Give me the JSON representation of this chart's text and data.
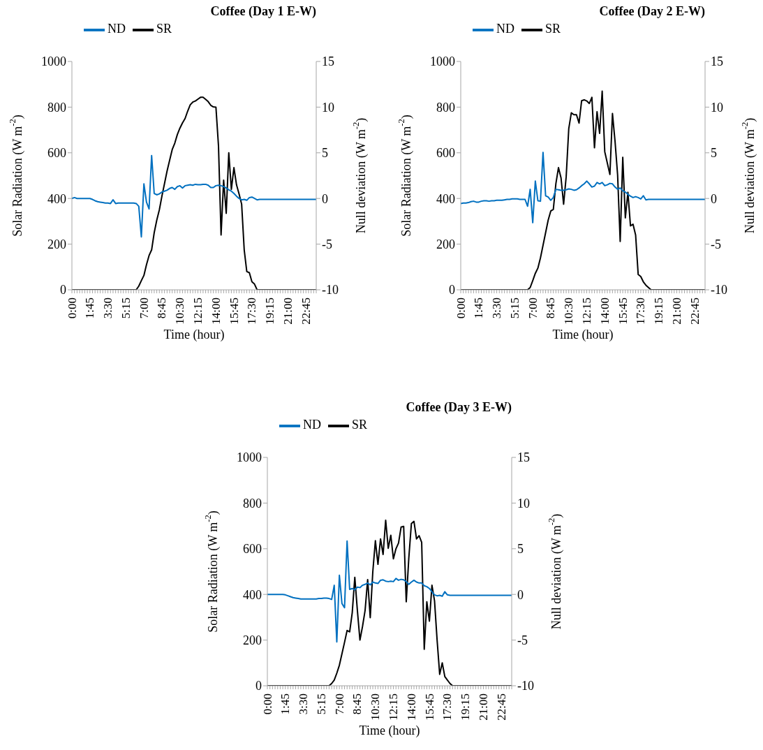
{
  "chart_data": [
    {
      "type": "line",
      "title": "Coffee (Day 1 E-W)",
      "xlabel": "Time (hour)",
      "ylabel": "Solar Radiation (W m$^{-2}$)",
      "y2label": "Null deviation (W m$^{-2}$)",
      "legend": "top left",
      "categories": [
        "0:00",
        null,
        null,
        null,
        null,
        null,
        null,
        "1:45",
        null,
        null,
        null,
        null,
        null,
        null,
        "3:30",
        null,
        null,
        null,
        null,
        null,
        null,
        "5:15",
        null,
        null,
        null,
        null,
        null,
        null,
        "7:00",
        null,
        null,
        null,
        null,
        null,
        null,
        "8:45",
        null,
        null,
        null,
        null,
        null,
        null,
        "10:30",
        null,
        null,
        null,
        null,
        null,
        null,
        "12:15",
        null,
        null,
        null,
        null,
        null,
        null,
        "14:00",
        null,
        null,
        null,
        null,
        null,
        null,
        "15:45",
        null,
        null,
        null,
        null,
        null,
        null,
        "17:30",
        null,
        null,
        null,
        null,
        null,
        null,
        "19:15",
        null,
        null,
        null,
        null,
        null,
        null,
        "21:00",
        null,
        null,
        null,
        null,
        null,
        null,
        "22:45",
        null,
        null,
        null,
        null
      ],
      "ylim": [
        0,
        1000
      ],
      "yticks": [
        0,
        200,
        400,
        600,
        800,
        1000
      ],
      "y2lim": [
        -10,
        15
      ],
      "y2ticks": [
        -10,
        -5,
        0,
        5,
        10,
        15
      ],
      "series": [
        {
          "name": "SR",
          "color": "#000000",
          "values": [
            0,
            0,
            0,
            0,
            0,
            0,
            0,
            0,
            0,
            0,
            0,
            0,
            0,
            0,
            0,
            0,
            0,
            0,
            0,
            0,
            0,
            0,
            0,
            0,
            0,
            0,
            16,
            40,
            63,
            110,
            150,
            175,
            250,
            305,
            350,
            410,
            465,
            520,
            567,
            614,
            642,
            680,
            708,
            731,
            750,
            782,
            810,
            822,
            827,
            835,
            843,
            843,
            834,
            824,
            808,
            801,
            800,
            630,
            240,
            480,
            335,
            600,
            440,
            535,
            460,
            420,
            375,
            175,
            80,
            75,
            35,
            25,
            0,
            0,
            0,
            0,
            0,
            0,
            0,
            0,
            0,
            0,
            0,
            0,
            0,
            0,
            0,
            0,
            0,
            0,
            0,
            0,
            0,
            0,
            0,
            0
          ]
        },
        {
          "name": "ND",
          "color": "#0070c0",
          "axis": "y2",
          "values": [
            0,
            0.1,
            0,
            0,
            0,
            0,
            0,
            0,
            -0.1,
            -0.25,
            -0.35,
            -0.4,
            -0.45,
            -0.5,
            -0.5,
            -0.55,
            -0.15,
            -0.55,
            -0.5,
            -0.5,
            -0.5,
            -0.5,
            -0.5,
            -0.5,
            -0.5,
            -0.55,
            -0.85,
            -4.2,
            1.6,
            -0.4,
            -1.15,
            4.7,
            0.55,
            0.4,
            0.5,
            0.7,
            0.8,
            0.9,
            1.1,
            1.2,
            1.0,
            1.3,
            1.4,
            1.15,
            1.4,
            1.45,
            1.5,
            1.45,
            1.55,
            1.5,
            1.5,
            1.55,
            1.55,
            1.45,
            1.2,
            1.2,
            1.4,
            1.45,
            1.4,
            1.3,
            1.15,
            0.95,
            0.8,
            0.55,
            0.25,
            0,
            -0.15,
            -0.1,
            -0.2,
            0.1,
            0.15,
            0,
            -0.15,
            -0.1,
            -0.1,
            -0.1,
            -0.1,
            -0.1,
            -0.1,
            -0.1,
            -0.1,
            -0.1,
            -0.1,
            -0.1,
            -0.1,
            -0.1,
            -0.1,
            -0.1,
            -0.1,
            -0.1,
            -0.1,
            -0.1,
            -0.1,
            -0.1,
            -0.1,
            -0.1
          ]
        }
      ]
    },
    {
      "type": "line",
      "title": "Coffee (Day 2 E-W)",
      "xlabel": "Time (hour)",
      "ylabel": "Solar Radiation (W m$^{-2}$)",
      "y2label": "Null deviation (W m$^{-2}$)",
      "legend": "top left",
      "categories": [
        "0:00",
        null,
        null,
        null,
        null,
        null,
        null,
        "1:45",
        null,
        null,
        null,
        null,
        null,
        null,
        "3:30",
        null,
        null,
        null,
        null,
        null,
        null,
        "5:15",
        null,
        null,
        null,
        null,
        null,
        null,
        "7:00",
        null,
        null,
        null,
        null,
        null,
        null,
        "8:45",
        null,
        null,
        null,
        null,
        null,
        null,
        "10:30",
        null,
        null,
        null,
        null,
        null,
        null,
        "12:15",
        null,
        null,
        null,
        null,
        null,
        null,
        "14:00",
        null,
        null,
        null,
        null,
        null,
        null,
        "15:45",
        null,
        null,
        null,
        null,
        null,
        null,
        "17:30",
        null,
        null,
        null,
        null,
        null,
        null,
        "19:15",
        null,
        null,
        null,
        null,
        null,
        null,
        "21:00",
        null,
        null,
        null,
        null,
        null,
        null,
        "22:45",
        null,
        null,
        null,
        null
      ],
      "ylim": [
        0,
        1000
      ],
      "yticks": [
        0,
        200,
        400,
        600,
        800,
        1000
      ],
      "y2lim": [
        -10,
        15
      ],
      "y2ticks": [
        -10,
        -5,
        0,
        5,
        10,
        15
      ],
      "series": [
        {
          "name": "SR",
          "color": "#000000",
          "values": [
            0,
            0,
            0,
            0,
            0,
            0,
            0,
            0,
            0,
            0,
            0,
            0,
            0,
            0,
            0,
            0,
            0,
            0,
            0,
            0,
            0,
            0,
            0,
            0,
            0,
            0,
            0,
            10,
            40,
            72,
            95,
            140,
            195,
            250,
            305,
            345,
            352,
            465,
            535,
            490,
            375,
            495,
            705,
            775,
            767,
            767,
            730,
            828,
            832,
            827,
            816,
            843,
            622,
            780,
            685,
            870,
            605,
            555,
            505,
            772,
            650,
            503,
            212,
            580,
            315,
            427,
            280,
            287,
            240,
            67,
            58,
            35,
            20,
            10,
            0,
            0,
            0,
            0,
            0,
            0,
            0,
            0,
            0,
            0,
            0,
            0,
            0,
            0,
            0,
            0,
            0,
            0,
            0,
            0,
            0,
            0
          ]
        },
        {
          "name": "ND",
          "color": "#0070c0",
          "axis": "y2",
          "values": [
            -0.55,
            -0.5,
            -0.5,
            -0.45,
            -0.35,
            -0.3,
            -0.4,
            -0.4,
            -0.3,
            -0.25,
            -0.25,
            -0.3,
            -0.25,
            -0.25,
            -0.2,
            -0.2,
            -0.2,
            -0.15,
            -0.1,
            -0.1,
            -0.05,
            -0.05,
            -0.05,
            -0.1,
            -0.1,
            -0.1,
            -0.85,
            1.0,
            -2.65,
            1.9,
            -0.25,
            -0.3,
            5.05,
            0.3,
            0.15,
            -0.2,
            0.1,
            1.0,
            0.95,
            0.9,
            0.9,
            0.95,
            1.05,
            1.0,
            0.9,
            0.95,
            1.15,
            1.4,
            1.6,
            1.9,
            1.6,
            1.25,
            1.35,
            1.75,
            1.6,
            1.75,
            1.4,
            1.5,
            1.65,
            1.6,
            1.25,
            1.0,
            1.15,
            0.85,
            0.7,
            0.45,
            0.25,
            0.1,
            0.2,
            0.1,
            -0.05,
            0.3,
            -0.15,
            -0.1,
            -0.1,
            -0.1,
            -0.1,
            -0.1,
            -0.1,
            -0.1,
            -0.1,
            -0.1,
            -0.1,
            -0.1,
            -0.1,
            -0.1,
            -0.1,
            -0.1,
            -0.1,
            -0.1,
            -0.1,
            -0.1,
            -0.1,
            -0.1,
            -0.1,
            -0.1
          ]
        }
      ]
    },
    {
      "type": "line",
      "title": "Coffee (Day 3 E-W)",
      "xlabel": "Time (hour)",
      "ylabel": "Solar Radiation (W m$^{-2}$)",
      "y2label": "Null deviation (W m$^{-2}$)",
      "legend": "top left",
      "categories": [
        "0:00",
        null,
        null,
        null,
        null,
        null,
        null,
        "1:45",
        null,
        null,
        null,
        null,
        null,
        null,
        "3:30",
        null,
        null,
        null,
        null,
        null,
        null,
        "5:15",
        null,
        null,
        null,
        null,
        null,
        null,
        "7:00",
        null,
        null,
        null,
        null,
        null,
        null,
        "8:45",
        null,
        null,
        null,
        null,
        null,
        null,
        "10:30",
        null,
        null,
        null,
        null,
        null,
        null,
        "12:15",
        null,
        null,
        null,
        null,
        null,
        null,
        "14:00",
        null,
        null,
        null,
        null,
        null,
        null,
        "15:45",
        null,
        null,
        null,
        null,
        null,
        null,
        "17:30",
        null,
        null,
        null,
        null,
        null,
        null,
        "19:15",
        null,
        null,
        null,
        null,
        null,
        null,
        "21:00",
        null,
        null,
        null,
        null,
        null,
        null,
        "22:45",
        null,
        null,
        null,
        null
      ],
      "ylim": [
        0,
        1000
      ],
      "yticks": [
        0,
        200,
        400,
        600,
        800,
        1000
      ],
      "y2lim": [
        -10,
        15
      ],
      "y2ticks": [
        -10,
        -5,
        0,
        5,
        10,
        15
      ],
      "series": [
        {
          "name": "SR",
          "color": "#000000",
          "values": [
            0,
            0,
            0,
            0,
            0,
            0,
            0,
            0,
            0,
            0,
            0,
            0,
            0,
            0,
            0,
            0,
            0,
            0,
            0,
            0,
            0,
            0,
            0,
            0,
            0,
            10,
            25,
            55,
            90,
            140,
            190,
            242,
            236,
            320,
            475,
            330,
            200,
            260,
            330,
            465,
            298,
            500,
            635,
            532,
            643,
            575,
            725,
            602,
            659,
            556,
            600,
            625,
            695,
            698,
            368,
            560,
            710,
            720,
            643,
            657,
            628,
            160,
            368,
            283,
            440,
            372,
            200,
            50,
            100,
            40,
            25,
            10,
            0,
            0,
            0,
            0,
            0,
            0,
            0,
            0,
            0,
            0,
            0,
            0,
            0,
            0,
            0,
            0,
            0,
            0,
            0,
            0,
            0,
            0,
            0,
            0
          ]
        },
        {
          "name": "ND",
          "color": "#0070c0",
          "axis": "y2",
          "values": [
            0,
            0,
            0,
            0,
            0,
            0,
            0,
            -0.05,
            -0.15,
            -0.25,
            -0.35,
            -0.4,
            -0.45,
            -0.5,
            -0.5,
            -0.5,
            -0.5,
            -0.5,
            -0.5,
            -0.5,
            -0.45,
            -0.45,
            -0.4,
            -0.4,
            -0.45,
            -0.55,
            1.0,
            -5.2,
            2.1,
            -1.0,
            -1.45,
            5.85,
            0.55,
            0.65,
            0.5,
            0.8,
            0.75,
            1.0,
            1.1,
            1.25,
            1.05,
            1.35,
            1.25,
            1.2,
            1.55,
            1.6,
            1.45,
            1.4,
            1.45,
            1.4,
            1.75,
            1.55,
            1.65,
            1.6,
            1.4,
            1.1,
            1.35,
            1.55,
            1.35,
            1.25,
            1.25,
            0.95,
            0.85,
            0.65,
            0.3,
            -0.05,
            -0.15,
            -0.1,
            -0.2,
            0.3,
            -0.05,
            -0.1,
            -0.1,
            -0.1,
            -0.1,
            -0.1,
            -0.1,
            -0.1,
            -0.1,
            -0.1,
            -0.1,
            -0.1,
            -0.1,
            -0.1,
            -0.1,
            -0.1,
            -0.1,
            -0.1,
            -0.1,
            -0.1,
            -0.1,
            -0.1,
            -0.1,
            -0.1,
            -0.1,
            -0.1
          ]
        }
      ]
    }
  ]
}
